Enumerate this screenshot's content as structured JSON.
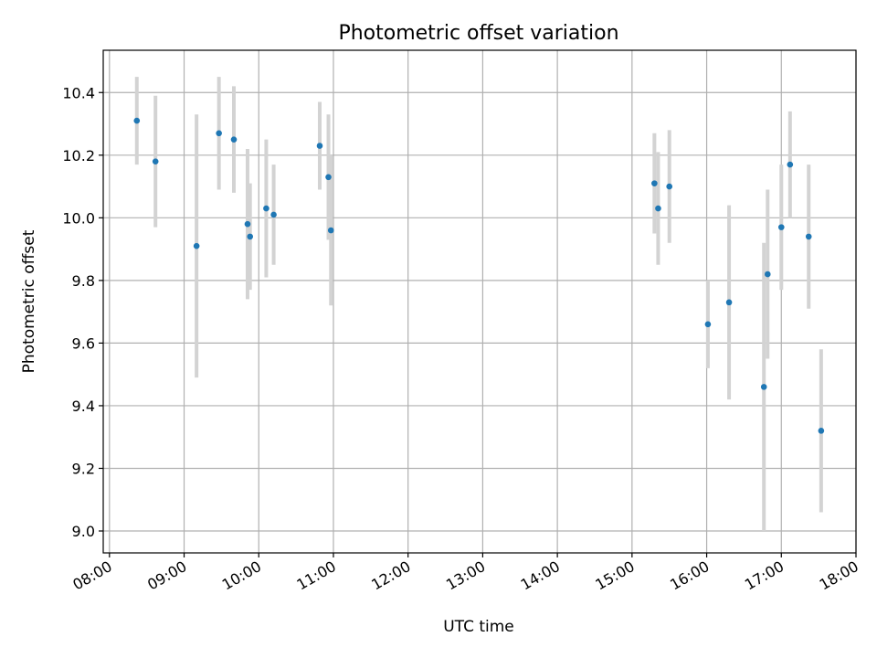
{
  "chart_data": {
    "type": "scatter",
    "title": "Photometric offset variation",
    "xlabel": "UTC time",
    "ylabel": "Photometric offset",
    "xlim": [
      "07:55",
      "18:00"
    ],
    "ylim": [
      8.93,
      10.535
    ],
    "x_ticks": [
      "08:00",
      "09:00",
      "10:00",
      "11:00",
      "12:00",
      "13:00",
      "14:00",
      "15:00",
      "16:00",
      "17:00",
      "18:00"
    ],
    "y_ticks": [
      "9.0",
      "9.2",
      "9.4",
      "9.6",
      "9.8",
      "10.0",
      "10.2",
      "10.4"
    ],
    "grid": true,
    "point_color": "#1f77b4",
    "errorbar_color": "#d3d3d3",
    "points": [
      {
        "x": "08:22",
        "y": 10.31,
        "err": 0.14
      },
      {
        "x": "08:37",
        "y": 10.18,
        "err": 0.21
      },
      {
        "x": "09:10",
        "y": 9.91,
        "err": 0.42
      },
      {
        "x": "09:28",
        "y": 10.27,
        "err": 0.18
      },
      {
        "x": "09:40",
        "y": 10.25,
        "err": 0.17
      },
      {
        "x": "09:51",
        "y": 9.98,
        "err": 0.24
      },
      {
        "x": "09:53",
        "y": 9.94,
        "err": 0.17
      },
      {
        "x": "10:06",
        "y": 10.03,
        "err": 0.22
      },
      {
        "x": "10:12",
        "y": 10.01,
        "err": 0.16
      },
      {
        "x": "10:49",
        "y": 10.23,
        "err": 0.14
      },
      {
        "x": "10:56",
        "y": 10.13,
        "err": 0.2
      },
      {
        "x": "10:58",
        "y": 9.96,
        "err": 0.24
      },
      {
        "x": "15:18",
        "y": 10.11,
        "err": 0.16
      },
      {
        "x": "15:21",
        "y": 10.03,
        "err": 0.18
      },
      {
        "x": "15:30",
        "y": 10.1,
        "err": 0.18
      },
      {
        "x": "16:01",
        "y": 9.66,
        "err": 0.14
      },
      {
        "x": "16:18",
        "y": 9.73,
        "err": 0.31
      },
      {
        "x": "16:46",
        "y": 9.46,
        "err": 0.46
      },
      {
        "x": "16:49",
        "y": 9.82,
        "err": 0.27
      },
      {
        "x": "17:00",
        "y": 9.97,
        "err": 0.2
      },
      {
        "x": "17:07",
        "y": 10.17,
        "err": 0.17
      },
      {
        "x": "17:22",
        "y": 9.94,
        "err": 0.23
      },
      {
        "x": "17:32",
        "y": 9.32,
        "err": 0.26
      }
    ]
  }
}
